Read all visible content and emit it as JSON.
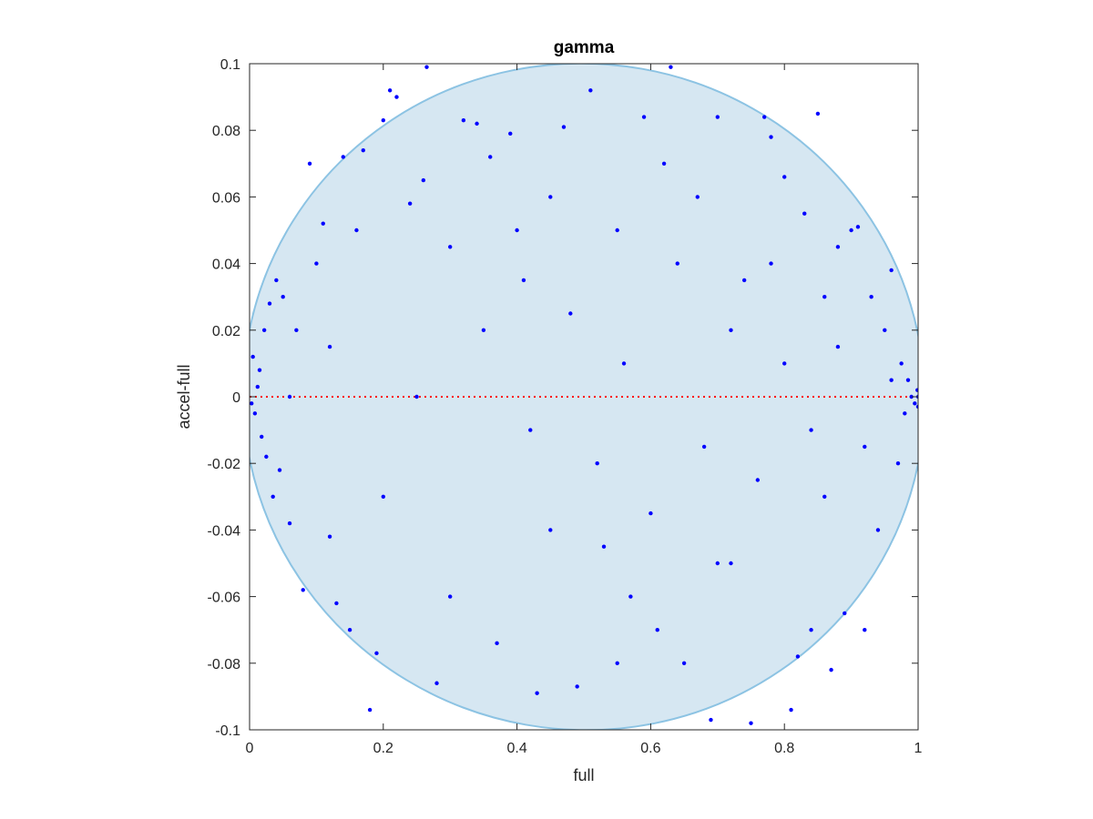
{
  "chart_data": {
    "type": "scatter",
    "title": "gamma",
    "xlabel": "full",
    "ylabel": "accel-full",
    "xlim": [
      0,
      1
    ],
    "ylim": [
      -0.1,
      0.1
    ],
    "xticks": [
      0,
      0.2,
      0.4,
      0.6,
      0.8,
      1
    ],
    "xtick_labels": [
      "0",
      "0.2",
      "0.4",
      "0.6",
      "0.8",
      "1"
    ],
    "yticks": [
      -0.1,
      -0.08,
      -0.06,
      -0.04,
      -0.02,
      0,
      0.02,
      0.04,
      0.06,
      0.08,
      0.1
    ],
    "ytick_labels": [
      "-0.1",
      "-0.08",
      "-0.06",
      "-0.04",
      "-0.02",
      "0",
      "0.02",
      "0.04",
      "0.06",
      "0.08",
      "0.1"
    ],
    "grid": false,
    "reference_line": {
      "y": 0,
      "style": "dotted",
      "color": "#ff0000"
    },
    "region": {
      "shape": "ellipse",
      "center": [
        0.5,
        0.0
      ],
      "semi_axes": [
        0.51,
        0.1
      ],
      "fill": "#d6e7f2",
      "stroke": "#8cc3e3"
    },
    "series": [
      {
        "color": "#0000ff",
        "points": [
          [
            0.005,
            0.012
          ],
          [
            0.008,
            -0.005
          ],
          [
            0.012,
            0.003
          ],
          [
            0.015,
            0.008
          ],
          [
            0.003,
            -0.002
          ],
          [
            0.018,
            -0.012
          ],
          [
            0.022,
            0.02
          ],
          [
            0.025,
            -0.018
          ],
          [
            0.03,
            0.028
          ],
          [
            0.035,
            -0.03
          ],
          [
            0.04,
            0.035
          ],
          [
            0.045,
            -0.022
          ],
          [
            0.05,
            0.03
          ],
          [
            0.06,
            -0.038
          ],
          [
            0.07,
            0.02
          ],
          [
            0.08,
            -0.058
          ],
          [
            0.09,
            0.07
          ],
          [
            0.1,
            0.04
          ],
          [
            0.11,
            0.052
          ],
          [
            0.12,
            -0.042
          ],
          [
            0.13,
            -0.062
          ],
          [
            0.14,
            0.072
          ],
          [
            0.15,
            -0.07
          ],
          [
            0.16,
            0.05
          ],
          [
            0.17,
            0.074
          ],
          [
            0.18,
            -0.094
          ],
          [
            0.19,
            -0.077
          ],
          [
            0.2,
            0.083
          ],
          [
            0.21,
            0.092
          ],
          [
            0.22,
            0.09
          ],
          [
            0.24,
            0.058
          ],
          [
            0.26,
            0.065
          ],
          [
            0.265,
            0.099
          ],
          [
            0.28,
            -0.086
          ],
          [
            0.3,
            0.045
          ],
          [
            0.32,
            0.083
          ],
          [
            0.34,
            0.082
          ],
          [
            0.36,
            0.072
          ],
          [
            0.37,
            -0.074
          ],
          [
            0.39,
            0.079
          ],
          [
            0.41,
            0.035
          ],
          [
            0.43,
            -0.089
          ],
          [
            0.45,
            -0.04
          ],
          [
            0.47,
            0.081
          ],
          [
            0.49,
            -0.087
          ],
          [
            0.51,
            0.092
          ],
          [
            0.53,
            -0.045
          ],
          [
            0.55,
            0.05
          ],
          [
            0.57,
            -0.06
          ],
          [
            0.59,
            0.084
          ],
          [
            0.61,
            -0.07
          ],
          [
            0.63,
            0.099
          ],
          [
            0.65,
            -0.08
          ],
          [
            0.67,
            0.06
          ],
          [
            0.69,
            -0.097
          ],
          [
            0.7,
            0.084
          ],
          [
            0.72,
            -0.05
          ],
          [
            0.74,
            0.035
          ],
          [
            0.75,
            -0.098
          ],
          [
            0.77,
            0.084
          ],
          [
            0.78,
            0.078
          ],
          [
            0.8,
            0.066
          ],
          [
            0.81,
            -0.094
          ],
          [
            0.82,
            -0.078
          ],
          [
            0.83,
            0.055
          ],
          [
            0.84,
            -0.07
          ],
          [
            0.85,
            0.085
          ],
          [
            0.86,
            0.03
          ],
          [
            0.87,
            -0.082
          ],
          [
            0.88,
            0.045
          ],
          [
            0.89,
            -0.065
          ],
          [
            0.9,
            0.05
          ],
          [
            0.91,
            0.051
          ],
          [
            0.92,
            -0.07
          ],
          [
            0.93,
            0.03
          ],
          [
            0.94,
            -0.04
          ],
          [
            0.95,
            0.02
          ],
          [
            0.96,
            0.038
          ],
          [
            0.97,
            -0.02
          ],
          [
            0.975,
            0.01
          ],
          [
            0.98,
            -0.005
          ],
          [
            0.985,
            0.005
          ],
          [
            0.99,
            0.0
          ],
          [
            0.995,
            -0.002
          ],
          [
            1.0,
            0.0
          ],
          [
            1.0,
            -0.003
          ],
          [
            0.999,
            0.002
          ],
          [
            0.06,
            0.0
          ],
          [
            0.12,
            0.015
          ],
          [
            0.2,
            -0.03
          ],
          [
            0.3,
            -0.06
          ],
          [
            0.35,
            0.02
          ],
          [
            0.42,
            -0.01
          ],
          [
            0.48,
            0.025
          ],
          [
            0.52,
            -0.02
          ],
          [
            0.56,
            0.01
          ],
          [
            0.6,
            -0.035
          ],
          [
            0.64,
            0.04
          ],
          [
            0.68,
            -0.015
          ],
          [
            0.72,
            0.02
          ],
          [
            0.76,
            -0.025
          ],
          [
            0.8,
            0.01
          ],
          [
            0.84,
            -0.01
          ],
          [
            0.88,
            0.015
          ],
          [
            0.92,
            -0.015
          ],
          [
            0.96,
            0.005
          ],
          [
            0.25,
            0.0
          ],
          [
            0.4,
            0.05
          ],
          [
            0.45,
            0.06
          ],
          [
            0.55,
            -0.08
          ],
          [
            0.62,
            0.07
          ],
          [
            0.7,
            -0.05
          ],
          [
            0.78,
            0.04
          ],
          [
            0.86,
            -0.03
          ]
        ]
      }
    ]
  }
}
